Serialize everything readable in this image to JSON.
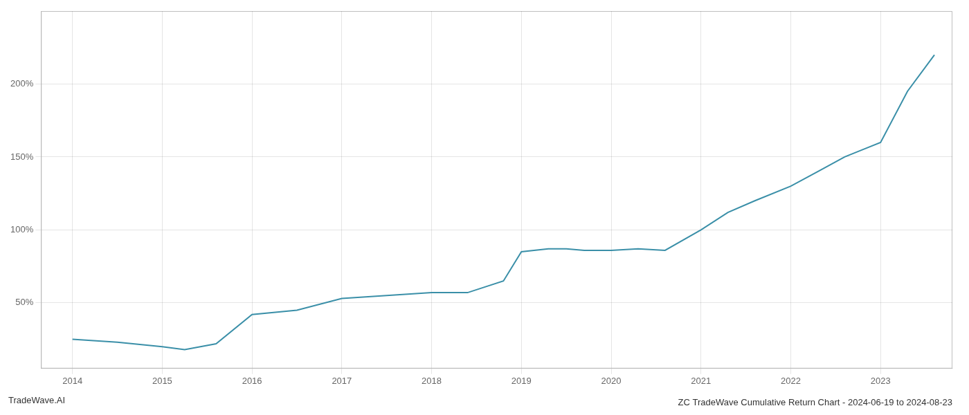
{
  "chart_data": {
    "type": "line",
    "title": "ZC TradeWave Cumulative Return Chart - 2024-06-19 to 2024-08-23",
    "annotations": [
      "TradeWave.AI"
    ],
    "x": [
      2014.0,
      2014.5,
      2015.0,
      2015.25,
      2015.6,
      2016.0,
      2016.5,
      2017.0,
      2017.5,
      2018.0,
      2018.4,
      2018.8,
      2019.0,
      2019.3,
      2019.5,
      2019.7,
      2020.0,
      2020.3,
      2020.6,
      2021.0,
      2021.3,
      2021.6,
      2022.0,
      2022.3,
      2022.6,
      2022.8,
      2023.0,
      2023.3,
      2023.6
    ],
    "values": [
      25,
      23,
      20,
      18,
      22,
      42,
      45,
      53,
      55,
      57,
      57,
      65,
      85,
      87,
      87,
      86,
      86,
      87,
      86,
      100,
      112,
      120,
      130,
      140,
      150,
      155,
      160,
      195,
      220
    ],
    "color": "#3a8fa8",
    "xlim": [
      2013.65,
      2023.8
    ],
    "ylim": [
      5,
      250
    ],
    "xticks": [
      2014,
      2015,
      2016,
      2017,
      2018,
      2019,
      2020,
      2021,
      2022,
      2023
    ],
    "yticks": [
      {
        "value": 50,
        "label": "50%"
      },
      {
        "value": 100,
        "label": "100%"
      },
      {
        "value": 150,
        "label": "150%"
      },
      {
        "value": 200,
        "label": "200%"
      }
    ],
    "grid": true
  }
}
